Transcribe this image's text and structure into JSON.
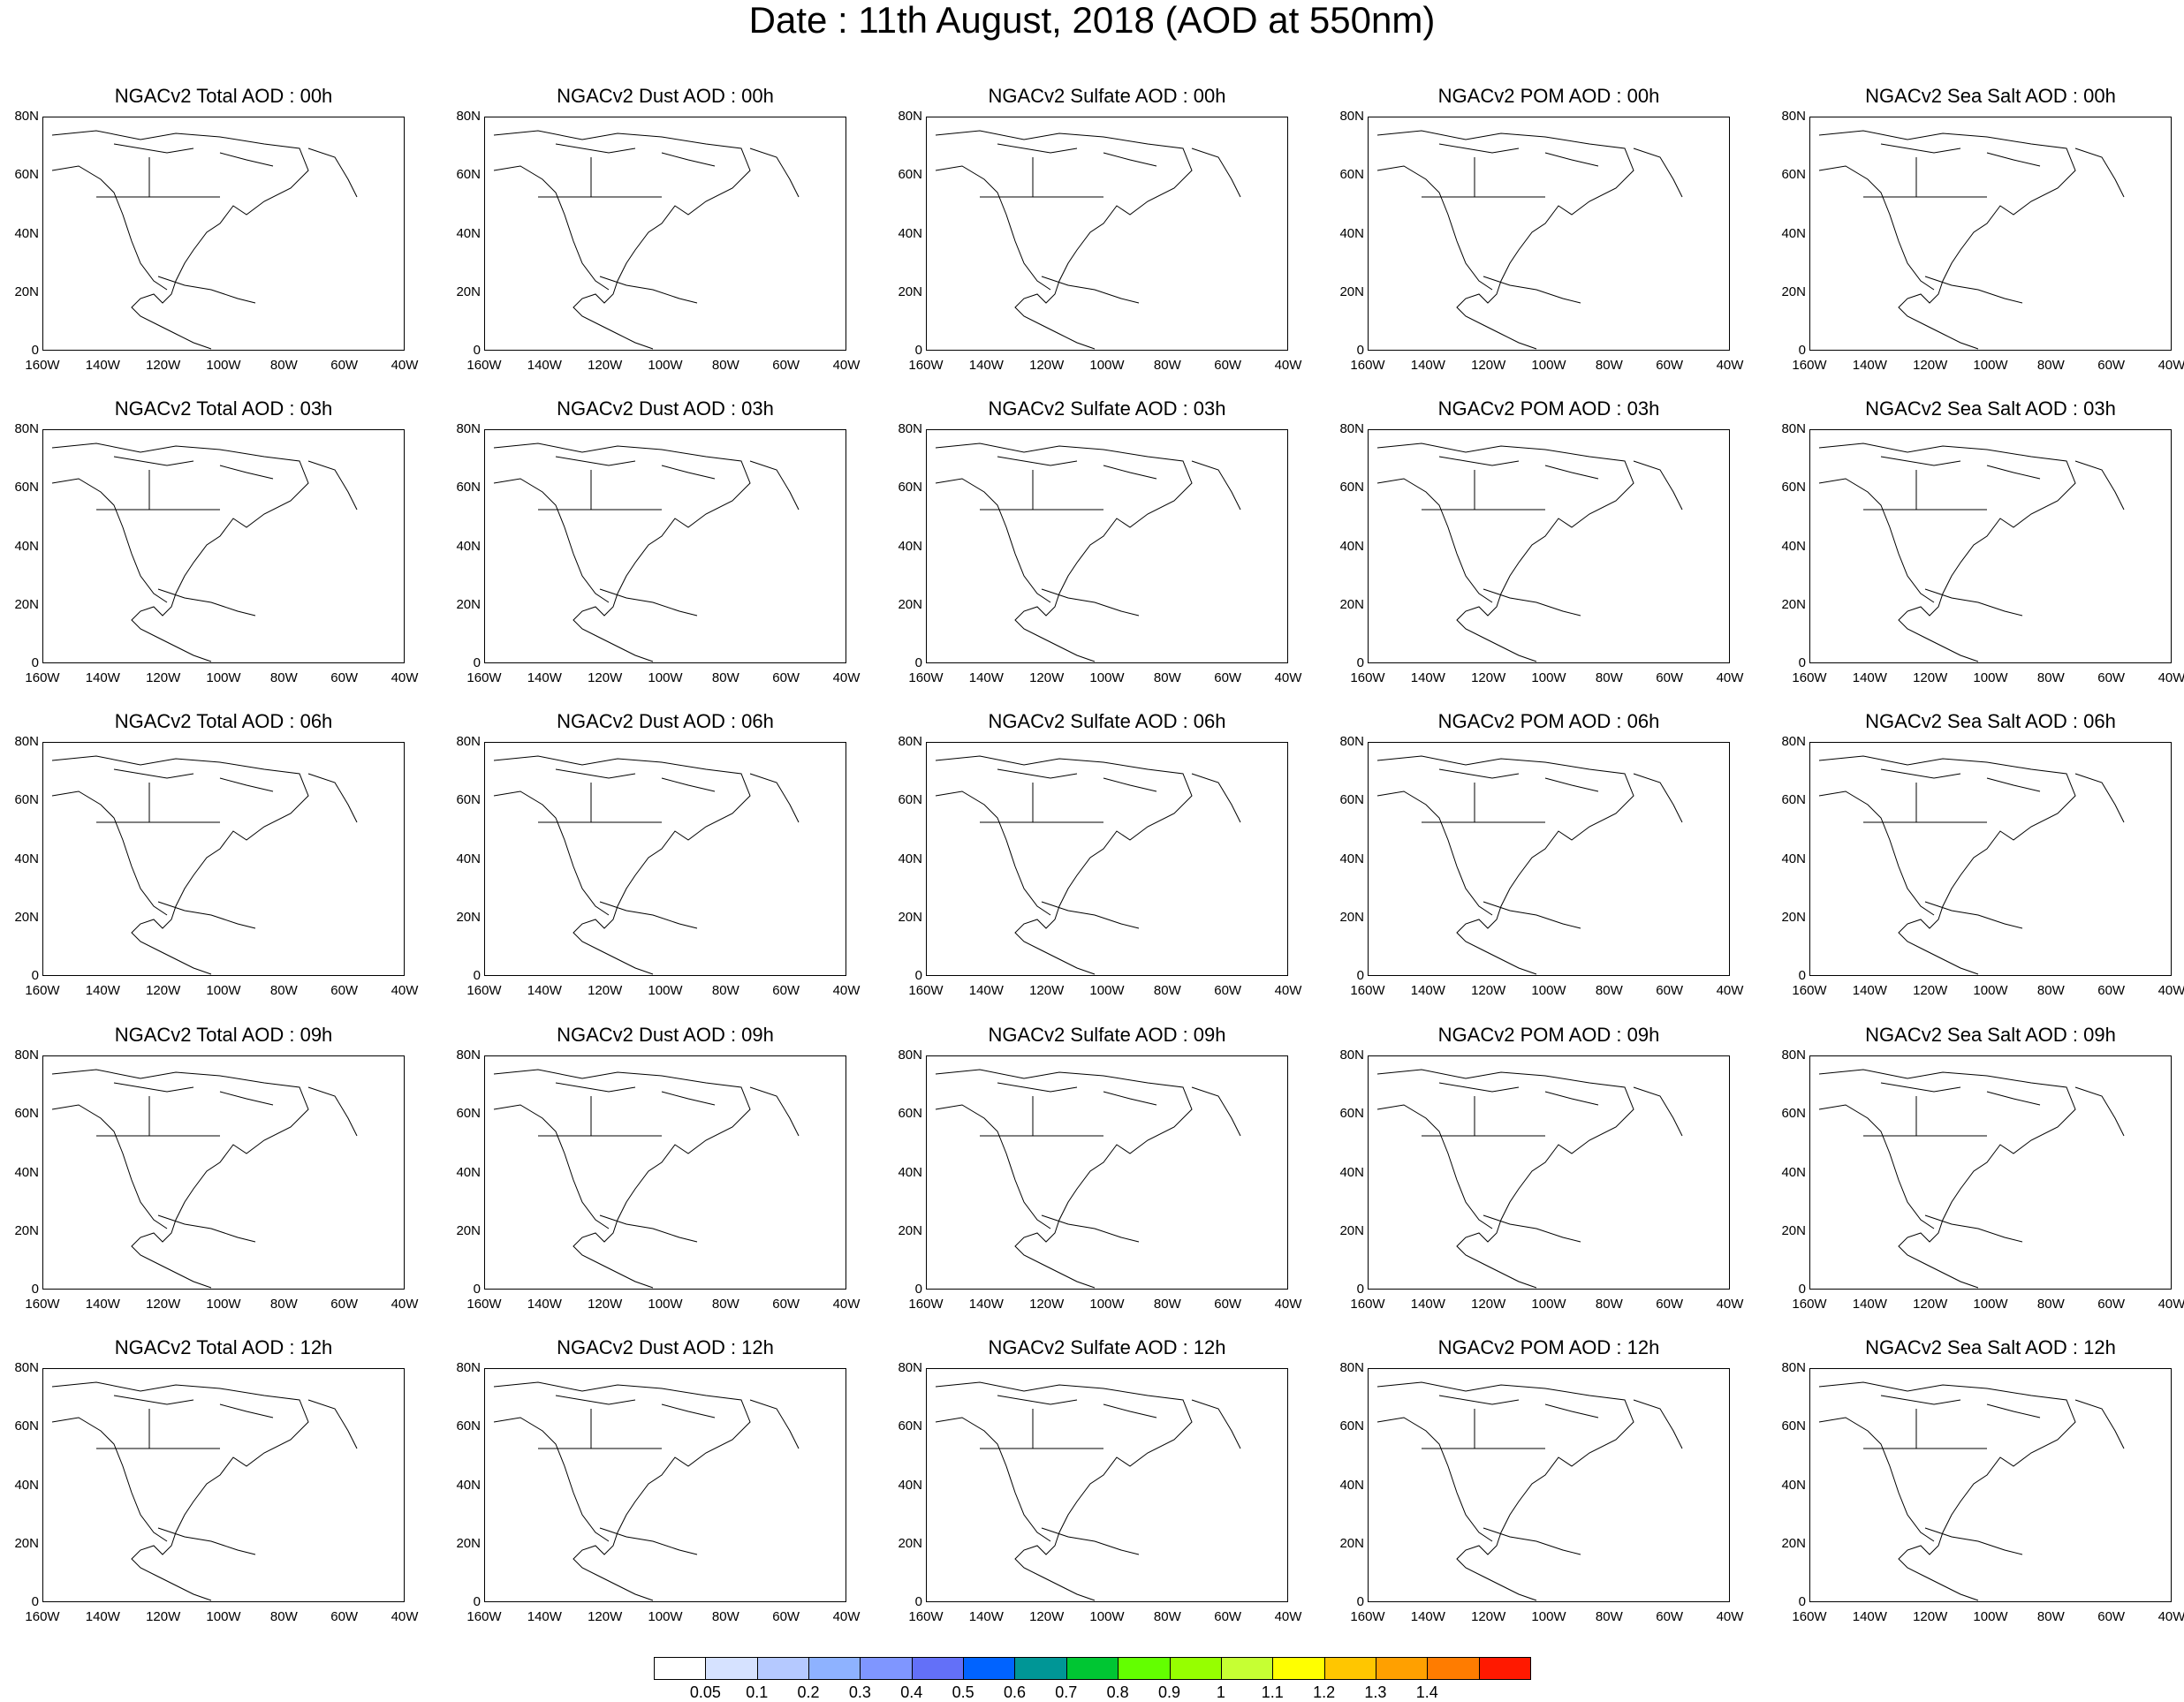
{
  "title": "Date : 11th August, 2018 (AOD at 550nm)",
  "panel_titles": [
    [
      "NGACv2 Total AOD : 00h",
      "NGACv2 Dust AOD : 00h",
      "NGACv2 Sulfate AOD : 00h",
      "NGACv2 POM AOD : 00h",
      "NGACv2 Sea Salt AOD : 00h"
    ],
    [
      "NGACv2 Total AOD : 03h",
      "NGACv2 Dust AOD : 03h",
      "NGACv2 Sulfate AOD : 03h",
      "NGACv2 POM AOD : 03h",
      "NGACv2 Sea Salt AOD : 03h"
    ],
    [
      "NGACv2 Total AOD : 06h",
      "NGACv2 Dust AOD : 06h",
      "NGACv2 Sulfate AOD : 06h",
      "NGACv2 POM AOD : 06h",
      "NGACv2 Sea Salt AOD : 06h"
    ],
    [
      "NGACv2 Total AOD : 09h",
      "NGACv2 Dust AOD : 09h",
      "NGACv2 Sulfate AOD : 09h",
      "NGACv2 POM AOD : 09h",
      "NGACv2 Sea Salt  AOD : 09h"
    ],
    [
      "NGACv2 Total AOD  : 12h",
      "NGACv2 Dust AOD : 12h",
      "NGACv2 Sulfate AOD : 12h",
      "NGACv2 POM  AOD : 12h",
      "NGACv2 Sea Salt  AOD : 12h"
    ]
  ],
  "lat_ticks": [
    "80N",
    "60N",
    "40N",
    "20N",
    "0"
  ],
  "lon_ticks": [
    "160W",
    "140W",
    "120W",
    "100W",
    "80W",
    "60W",
    "40W"
  ],
  "colorbar": {
    "colors": [
      "#ffffff",
      "#d6e2ff",
      "#b5c9ff",
      "#8eb2ff",
      "#7f96ff",
      "#6370f8",
      "#0063ff",
      "#009696",
      "#00c633",
      "#63ff00",
      "#96ff00",
      "#c6ff33",
      "#ffff00",
      "#ffc600",
      "#ffa000",
      "#ff7c00",
      "#ff1900"
    ],
    "labels": [
      "0.05",
      "0.1",
      "0.2",
      "0.3",
      "0.4",
      "0.5",
      "0.6",
      "0.7",
      "0.8",
      "0.9",
      "1",
      "1.1",
      "1.2",
      "1.3",
      "1.4"
    ]
  }
}
